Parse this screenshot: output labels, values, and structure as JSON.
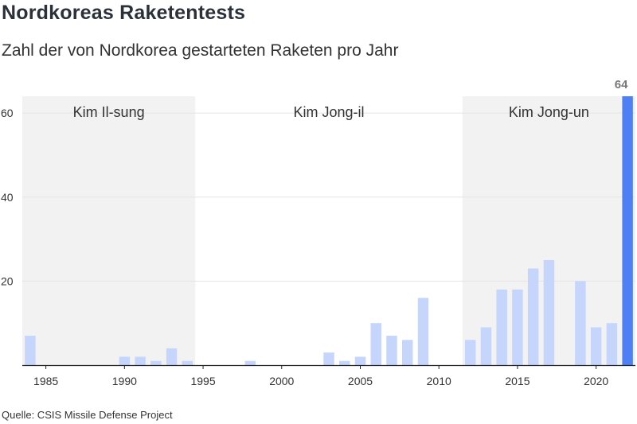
{
  "header": {
    "title": "Nordkoreas Raketentests",
    "subtitle": "Zahl der von Nordkorea gestarteten Raketen pro Jahr"
  },
  "footer": {
    "source": "Quelle: CSIS Missile Defense Project"
  },
  "colors": {
    "bar": "#c6d5fb",
    "bar_highlight": "#4f7ff5",
    "era_shade": "#f2f2f2",
    "grid": "#e4e4e4",
    "axis": "#222222"
  },
  "chart_data": {
    "type": "bar",
    "x": [
      1984,
      1985,
      1986,
      1987,
      1988,
      1989,
      1990,
      1991,
      1992,
      1993,
      1994,
      1995,
      1996,
      1997,
      1998,
      1999,
      2000,
      2001,
      2002,
      2003,
      2004,
      2005,
      2006,
      2007,
      2008,
      2009,
      2010,
      2011,
      2012,
      2013,
      2014,
      2015,
      2016,
      2017,
      2018,
      2019,
      2020,
      2021,
      2022
    ],
    "values": [
      7,
      0,
      0,
      0,
      0,
      0,
      2,
      2,
      1,
      4,
      1,
      0,
      0,
      0,
      1,
      0,
      0,
      0,
      0,
      3,
      1,
      2,
      10,
      7,
      6,
      16,
      0,
      0,
      6,
      9,
      18,
      18,
      23,
      25,
      0,
      20,
      9,
      10,
      64
    ],
    "highlight_index": 38,
    "data_labels": [
      {
        "x": 2022,
        "label": "64"
      }
    ],
    "xlim": [
      1983.5,
      2022.5
    ],
    "ylim": [
      0,
      64
    ],
    "yticks": [
      20,
      40,
      60
    ],
    "ytick_labels": [
      "20",
      "40",
      "60"
    ],
    "xticks": [
      1985,
      1990,
      1995,
      2000,
      2005,
      2010,
      2015,
      2020
    ],
    "xtick_labels": [
      "1985",
      "1990",
      "1995",
      "2000",
      "2005",
      "2010",
      "2015",
      "2020"
    ],
    "grid": true,
    "eras": [
      {
        "label": "Kim Il-sung",
        "from": 1983.5,
        "to": 1994.5,
        "shaded": true
      },
      {
        "label": "Kim Jong-il",
        "from": 1994.5,
        "to": 2011.5,
        "shaded": false
      },
      {
        "label": "Kim Jong-un",
        "from": 2011.5,
        "to": 2022.5,
        "shaded": true
      }
    ]
  }
}
